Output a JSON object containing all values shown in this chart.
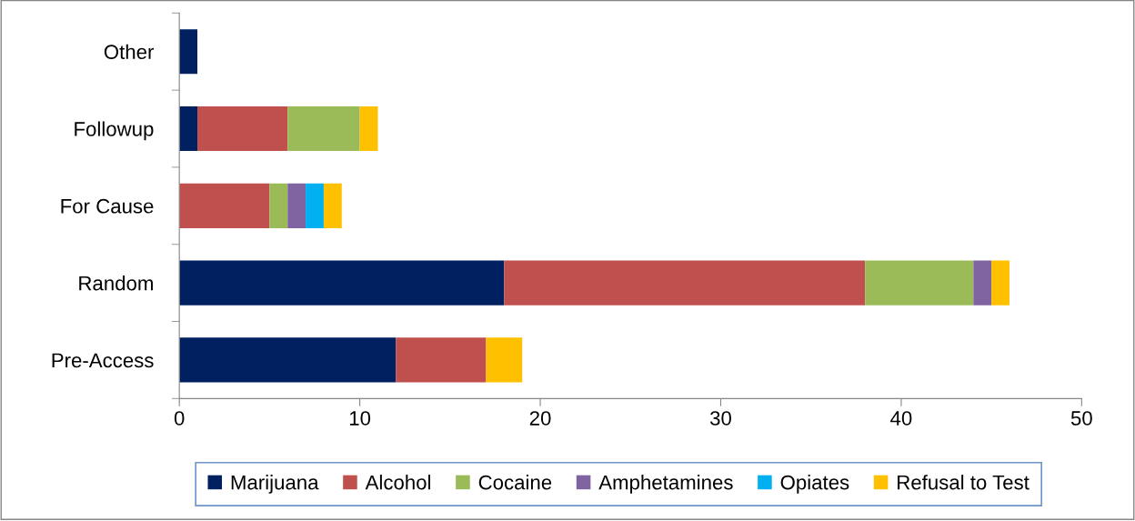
{
  "chart_data": {
    "type": "bar",
    "orientation": "horizontal",
    "stacked": true,
    "categories": [
      "Other",
      "Followup",
      "For Cause",
      "Random",
      "Pre-Access"
    ],
    "series": [
      {
        "name": "Marijuana",
        "color": "#002060",
        "values": [
          1,
          1,
          0,
          18,
          12
        ]
      },
      {
        "name": "Alcohol",
        "color": "#c0504d",
        "values": [
          0,
          5,
          5,
          20,
          5
        ]
      },
      {
        "name": "Cocaine",
        "color": "#9bbb59",
        "values": [
          0,
          4,
          1,
          6,
          0
        ]
      },
      {
        "name": "Amphetamines",
        "color": "#8064a2",
        "values": [
          0,
          0,
          1,
          1,
          0
        ]
      },
      {
        "name": "Opiates",
        "color": "#00b0f0",
        "values": [
          0,
          0,
          1,
          0,
          0
        ]
      },
      {
        "name": "Refusal to Test",
        "color": "#ffc000",
        "values": [
          0,
          1,
          1,
          1,
          2
        ]
      }
    ],
    "xlim": [
      0,
      50
    ],
    "xticks": [
      0,
      10,
      20,
      30,
      40,
      50
    ],
    "grid": false,
    "legend": "bottom"
  }
}
